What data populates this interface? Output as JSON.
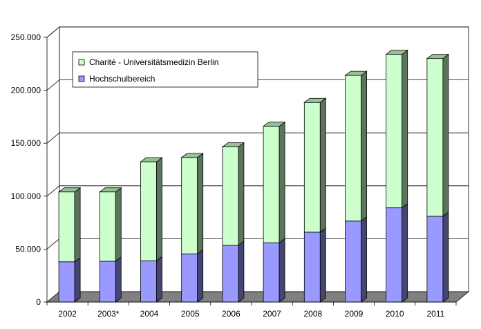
{
  "chart_data": {
    "type": "bar",
    "stacked": true,
    "three_d": true,
    "categories": [
      "2002",
      "2003*",
      "2004",
      "2005",
      "2006",
      "2007",
      "2008",
      "2009",
      "2010",
      "2011"
    ],
    "series": [
      {
        "name": "Hochschulbereich",
        "color": "#9999ff",
        "values": [
          38000,
          38500,
          39000,
          45500,
          53500,
          56000,
          66000,
          76500,
          89000,
          81000
        ]
      },
      {
        "name": "Charité - Universitätsmedizin Berlin",
        "color": "#ccffcc",
        "values": [
          66000,
          65500,
          93500,
          91000,
          93000,
          110000,
          122500,
          137500,
          145000,
          149000
        ]
      }
    ],
    "ylim": [
      0,
      250000
    ],
    "y_ticks": [
      "0",
      "50.000",
      "100.000",
      "150.000",
      "200.000",
      "250.000"
    ],
    "y_tick_values": [
      0,
      50000,
      100000,
      150000,
      200000,
      250000
    ],
    "grid": true,
    "legend_position": "top-left",
    "title": "",
    "xlabel": "",
    "ylabel": ""
  }
}
